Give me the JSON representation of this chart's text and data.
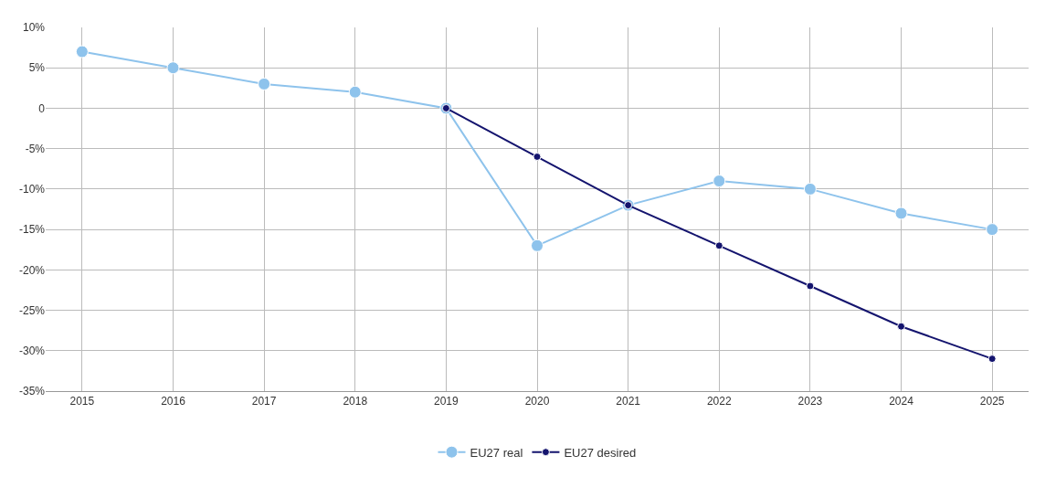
{
  "chart_data": {
    "type": "line",
    "x": [
      2015,
      2016,
      2017,
      2018,
      2019,
      2020,
      2021,
      2022,
      2023,
      2024,
      2025
    ],
    "series": [
      {
        "name": "EU27 real",
        "color": "#8ec3ec",
        "values": [
          7,
          5,
          3,
          2,
          0,
          -17,
          -12,
          -9,
          -10,
          -13,
          -15
        ]
      },
      {
        "name": "EU27 desired",
        "color": "#14146e",
        "x": [
          2019,
          2020,
          2021,
          2022,
          2023,
          2024,
          2025
        ],
        "values": [
          0,
          -6,
          -12,
          -17,
          -22,
          -27,
          -31
        ]
      }
    ],
    "xlim": [
      2014.6,
      2025.4
    ],
    "xticks": [
      2015,
      2016,
      2017,
      2018,
      2019,
      2020,
      2021,
      2022,
      2023,
      2024,
      2025
    ],
    "ylim": [
      -35,
      10
    ],
    "yticks": [
      {
        "value": 10,
        "label": "10%"
      },
      {
        "value": 5,
        "label": "5%"
      },
      0,
      {
        "value": -5,
        "label": "-5%"
      },
      {
        "value": -10,
        "label": "-10%"
      },
      {
        "value": -15,
        "label": "-15%"
      },
      {
        "value": -20,
        "label": "-20%"
      },
      {
        "value": -25,
        "label": "-25%"
      },
      {
        "value": -30,
        "label": "-30%"
      },
      {
        "value": -35,
        "label": "-35%"
      }
    ],
    "grid": true,
    "legend": "bottom",
    "marker": "circle",
    "line_style": "solid"
  }
}
